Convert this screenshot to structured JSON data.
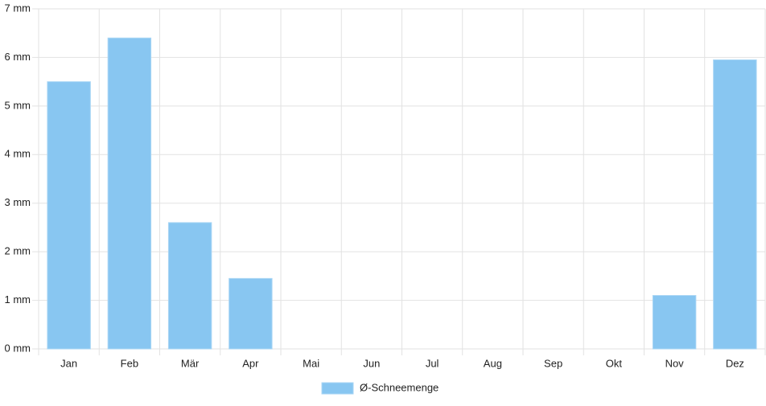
{
  "chart_data": {
    "type": "bar",
    "categories": [
      "Jan",
      "Feb",
      "Mär",
      "Apr",
      "Mai",
      "Jun",
      "Jul",
      "Aug",
      "Sep",
      "Okt",
      "Nov",
      "Dez"
    ],
    "series": [
      {
        "name": "Ø-Schneemenge",
        "color": "#88c6f1",
        "values": [
          5.5,
          6.4,
          2.6,
          1.45,
          0,
          0,
          0,
          0,
          0,
          0,
          1.1,
          5.95
        ]
      }
    ],
    "ylim": [
      0,
      7
    ],
    "yticks": [
      {
        "value": 0,
        "label": "0 mm"
      },
      {
        "value": 1,
        "label": "1 mm"
      },
      {
        "value": 2,
        "label": "2 mm"
      },
      {
        "value": 3,
        "label": "3 mm"
      },
      {
        "value": 4,
        "label": "4 mm"
      },
      {
        "value": 5,
        "label": "5 mm"
      },
      {
        "value": 6,
        "label": "6 mm"
      },
      {
        "value": 7,
        "label": "7 mm"
      }
    ],
    "grid": true,
    "legend": "bottom"
  }
}
